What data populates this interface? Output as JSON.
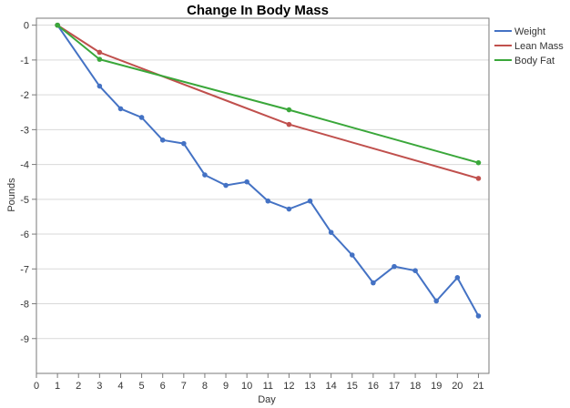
{
  "chart_data": {
    "type": "line",
    "title": "Change In Body Mass",
    "xlabel": "Day",
    "ylabel": "Pounds",
    "xlim": [
      0,
      21.5
    ],
    "ylim": [
      -10,
      0.2
    ],
    "xticks": [
      0,
      1,
      2,
      3,
      4,
      5,
      6,
      7,
      8,
      9,
      10,
      11,
      12,
      13,
      14,
      15,
      16,
      17,
      18,
      19,
      20,
      21
    ],
    "yticks": [
      0,
      -1,
      -2,
      -3,
      -4,
      -5,
      -6,
      -7,
      -8,
      -9
    ],
    "grid": "horizontal",
    "legend_position": "right",
    "series": [
      {
        "name": "Weight",
        "color": "#4472C4",
        "x": [
          1,
          3,
          4,
          5,
          6,
          7,
          8,
          9,
          10,
          11,
          12,
          13,
          14,
          15,
          16,
          17,
          18,
          19,
          20,
          21
        ],
        "y": [
          0,
          -1.75,
          -2.4,
          -2.65,
          -3.3,
          -3.4,
          -4.3,
          -4.6,
          -4.5,
          -5.05,
          -5.28,
          -5.05,
          -5.95,
          -6.6,
          -7.4,
          -6.93,
          -7.05,
          -7.92,
          -7.25,
          -8.35
        ]
      },
      {
        "name": "Lean Mass",
        "color": "#C0504D",
        "x": [
          1,
          3,
          12,
          21
        ],
        "y": [
          0,
          -0.78,
          -2.85,
          -4.4
        ]
      },
      {
        "name": "Body Fat",
        "color": "#3AA73A",
        "x": [
          1,
          3,
          12,
          21
        ],
        "y": [
          0,
          -0.98,
          -2.43,
          -3.95
        ]
      }
    ]
  }
}
